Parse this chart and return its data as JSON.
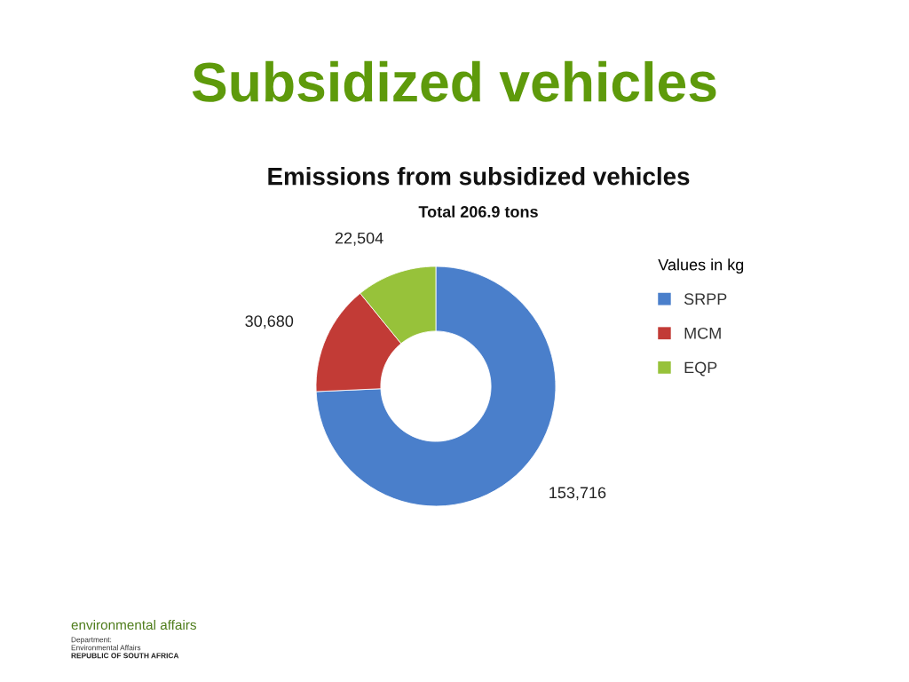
{
  "chart_data": {
    "type": "donut",
    "title": "Subsidized vehicles",
    "subtitle": "Emissions from subsidized vehicles",
    "annotations": [
      "Total 206.9 tons",
      "environmental affairs",
      "Department:",
      "Environmental Affairs",
      "REPUBLIC OF SOUTH AFRICA"
    ],
    "categories": [
      "SRPP",
      "MCM",
      "EQP"
    ],
    "values": [
      153716,
      30680,
      22504
    ],
    "colors": [
      "#4a7fcb",
      "#c23b36",
      "#97c23a"
    ],
    "value_labels": [
      "153,716",
      "30,680",
      "22,504"
    ],
    "legend_title": "Values in kg",
    "legend": "right"
  }
}
